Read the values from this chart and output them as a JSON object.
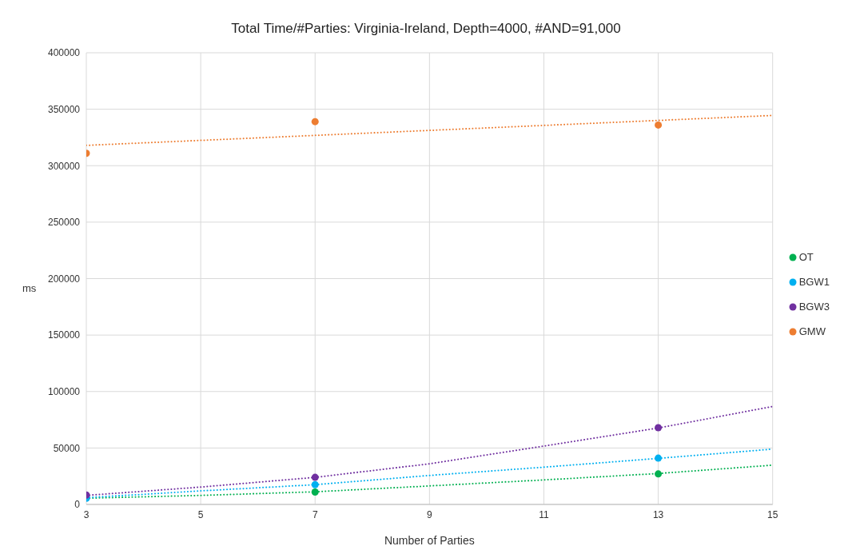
{
  "chart_data": {
    "type": "scatter",
    "title": "Total Time/#Parties: Virginia-Ireland, Depth=4000, #AND=91,000",
    "xlabel": "Number of Parties",
    "ylabel": "ms",
    "x": [
      3,
      7,
      13
    ],
    "series": [
      {
        "name": "OT",
        "color": "#00b050",
        "values": [
          null,
          11000,
          27000
        ]
      },
      {
        "name": "BGW1",
        "color": "#00b0f0",
        "values": [
          5500,
          17500,
          41000
        ]
      },
      {
        "name": "BGW3",
        "color": "#7030a0",
        "values": [
          8300,
          24000,
          68000
        ]
      },
      {
        "name": "GMW",
        "color": "#ed7d31",
        "values": [
          311000,
          339000,
          336000
        ]
      },
      {
        "type": "line",
        "color": "#00b050",
        "x": [
          3,
          5,
          7,
          9,
          11,
          13,
          15
        ],
        "values": [
          5500,
          8000,
          11200,
          16400,
          21700,
          27400,
          34800
        ],
        "line_style": "dotted",
        "marker": "none"
      },
      {
        "type": "line",
        "color": "#00b0f0",
        "x": [
          3,
          5,
          7,
          9,
          11,
          13,
          15
        ],
        "values": [
          6000,
          12000,
          17500,
          25700,
          33000,
          40800,
          49000
        ],
        "line_style": "dotted",
        "marker": "none"
      },
      {
        "type": "line",
        "color": "#7030a0",
        "x": [
          3,
          5,
          7,
          9,
          11,
          13,
          15
        ],
        "values": [
          8000,
          15400,
          24000,
          36000,
          51700,
          67700,
          86700
        ],
        "line_style": "dotted",
        "marker": "none"
      },
      {
        "type": "line",
        "color": "#ed7d31",
        "x": [
          3,
          15
        ],
        "values": [
          318000,
          344500
        ],
        "line_style": "dotted",
        "marker": "none"
      }
    ],
    "xlim": [
      3,
      15
    ],
    "xticks": [
      3,
      5,
      7,
      9,
      11,
      13,
      15
    ],
    "ylim": [
      0,
      400000
    ],
    "yticks": [
      0,
      50000,
      100000,
      150000,
      200000,
      250000,
      300000,
      350000,
      400000
    ],
    "grid": true,
    "legend": "right",
    "marker": "circle"
  }
}
